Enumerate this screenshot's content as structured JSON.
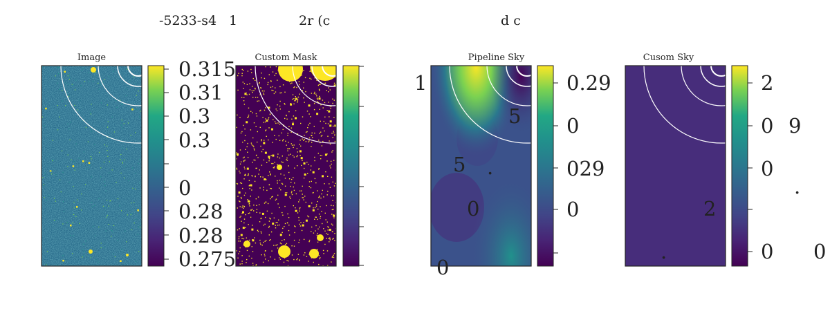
{
  "figure": {
    "suptitle_parts": [
      "-5233-s4",
      "1",
      "2r (c",
      "d c"
    ]
  },
  "chart_data": [
    {
      "type": "heatmap",
      "title": "Image",
      "colormap": "viridis",
      "grid": false,
      "overlay": "circular annuli (white)",
      "colorbar": {
        "ticks": [
          "0.315",
          "0.31",
          "0.3",
          "0.3",
          "",
          "0",
          "0.28",
          "0.28",
          "0.275"
        ]
      }
    },
    {
      "type": "heatmap",
      "title": "Custom Mask",
      "colormap": "viridis",
      "grid": false,
      "overlay": "circular annuli (white)",
      "colorbar": {
        "ticks": [
          "",
          "",
          "",
          "",
          "",
          ""
        ]
      }
    },
    {
      "type": "heatmap",
      "title": "Pipeline Sky",
      "colormap": "viridis",
      "grid": false,
      "overlay": "circular annuli (white)",
      "colorbar": {
        "ticks": [
          "0.29",
          "0",
          "029",
          "0",
          ""
        ]
      }
    },
    {
      "type": "heatmap",
      "title": "Cusom Sky",
      "colormap": "viridis",
      "grid": false,
      "overlay": "circular annuli (white)",
      "colorbar": {
        "ticks": [
          "2",
          "0",
          "0",
          "",
          "0"
        ]
      }
    }
  ],
  "stray_labels": [
    "1",
    "5",
    "5",
    "0",
    "0",
    "9",
    "2",
    "0",
    ".",
    ".",
    "."
  ]
}
